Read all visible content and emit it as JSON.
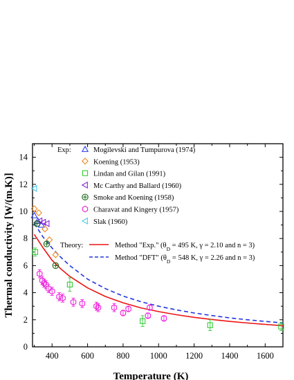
{
  "chart_data": {
    "type": "scatter",
    "xlabel": "Temperature (K)",
    "ylabel": "Thermal conductivity [W/(m.K)]",
    "xlim": [
      290,
      1700
    ],
    "ylim": [
      0,
      15
    ],
    "x_ticks": [
      400,
      600,
      800,
      1000,
      1200,
      1400,
      1600
    ],
    "y_ticks": [
      0,
      2,
      4,
      6,
      8,
      10,
      12,
      14
    ],
    "grid": false,
    "legend_placement": "top-right",
    "legend_exp_heading": "Exp:",
    "legend_theory_heading": "Theory:",
    "series": [
      {
        "name": "Mogilevski and Tumpurova (1974)",
        "marker": "triangle-up",
        "color": "#3344ee",
        "points": [
          [
            300,
            9.7
          ],
          [
            320,
            9.3
          ],
          [
            340,
            9.0
          ]
        ]
      },
      {
        "name": "Koening (1953)",
        "marker": "diamond",
        "color": "#ee8822",
        "points": [
          [
            300,
            10.2
          ],
          [
            325,
            9.9
          ],
          [
            360,
            8.7
          ],
          [
            385,
            7.9
          ],
          [
            420,
            6.8
          ]
        ]
      },
      {
        "name": "Lindan and Gilan (1991)",
        "marker": "square",
        "color": "#33cc33",
        "points": [
          [
            305,
            7.0
          ],
          [
            500,
            4.6
          ],
          [
            910,
            1.9
          ],
          [
            1290,
            1.6
          ],
          [
            1690,
            1.5
          ]
        ],
        "errors": [
          0.3,
          0.5,
          0.4,
          0.4,
          0.3
        ]
      },
      {
        "name": "Mc Carthy and Ballard (1960)",
        "marker": "triangle-left",
        "color": "#8822dd",
        "points": [
          [
            330,
            9.3
          ],
          [
            350,
            9.2
          ],
          [
            370,
            9.1
          ]
        ]
      },
      {
        "name": "Smoke and Koening (1958)",
        "marker": "circle-plus",
        "color": "#116611",
        "points": [
          [
            315,
            9.1
          ],
          [
            370,
            7.6
          ],
          [
            420,
            6.0
          ]
        ]
      },
      {
        "name": "Charavat and Kingery (1957)",
        "marker": "hexagon",
        "color": "#ee22dd",
        "points": [
          [
            330,
            5.4
          ],
          [
            345,
            4.9
          ],
          [
            355,
            4.7
          ],
          [
            365,
            4.6
          ],
          [
            380,
            4.3
          ],
          [
            400,
            4.1
          ],
          [
            440,
            3.7
          ],
          [
            460,
            3.6
          ],
          [
            520,
            3.3
          ],
          [
            570,
            3.2
          ],
          [
            650,
            3.0
          ],
          [
            660,
            2.9
          ],
          [
            750,
            2.9
          ],
          [
            800,
            2.5
          ],
          [
            830,
            2.8
          ],
          [
            940,
            2.3
          ],
          [
            950,
            2.9
          ],
          [
            1030,
            2.1
          ]
        ],
        "errors": [
          0.3,
          0.3,
          0.3,
          0.3,
          0.3,
          0.3,
          0.3,
          0.3,
          0.3,
          0.3,
          0.3,
          0.3,
          0.3,
          0.2,
          0.2,
          0.2,
          0.2,
          0.2
        ]
      },
      {
        "name": "Slak (1960)",
        "marker": "triangle-left",
        "color": "#44ccee",
        "points": [
          [
            300,
            11.7
          ]
        ]
      }
    ],
    "curves": [
      {
        "name": "Method \"Exp.\"",
        "params_prefix": " (θ",
        "params_sub": "D",
        "params_suffix": " = 495 K, γ = 2.10 and n = 3)",
        "color": "#ee1111",
        "dash": "solid",
        "points": [
          [
            300,
            8.3
          ],
          [
            350,
            7.3
          ],
          [
            400,
            6.4
          ],
          [
            450,
            5.75
          ],
          [
            500,
            5.2
          ],
          [
            600,
            4.35
          ],
          [
            700,
            3.72
          ],
          [
            800,
            3.25
          ],
          [
            900,
            2.88
          ],
          [
            1000,
            2.6
          ],
          [
            1100,
            2.37
          ],
          [
            1200,
            2.18
          ],
          [
            1300,
            2.02
          ],
          [
            1400,
            1.88
          ],
          [
            1500,
            1.76
          ],
          [
            1600,
            1.66
          ],
          [
            1700,
            1.56
          ]
        ]
      },
      {
        "name": "Method \"DFT\"",
        "params_prefix": " (θ",
        "params_sub": "D",
        "params_suffix": " = 548 K, γ = 2.26 and n = 3)",
        "color": "#2233dd",
        "dash": "dashed",
        "points": [
          [
            300,
            9.1
          ],
          [
            350,
            8.1
          ],
          [
            400,
            7.3
          ],
          [
            450,
            6.6
          ],
          [
            500,
            6.0
          ],
          [
            600,
            5.0
          ],
          [
            700,
            4.3
          ],
          [
            800,
            3.75
          ],
          [
            900,
            3.33
          ],
          [
            1000,
            3.0
          ],
          [
            1100,
            2.73
          ],
          [
            1200,
            2.5
          ],
          [
            1300,
            2.31
          ],
          [
            1400,
            2.14
          ],
          [
            1500,
            2.0
          ],
          [
            1600,
            1.88
          ],
          [
            1700,
            1.77
          ]
        ]
      }
    ]
  }
}
